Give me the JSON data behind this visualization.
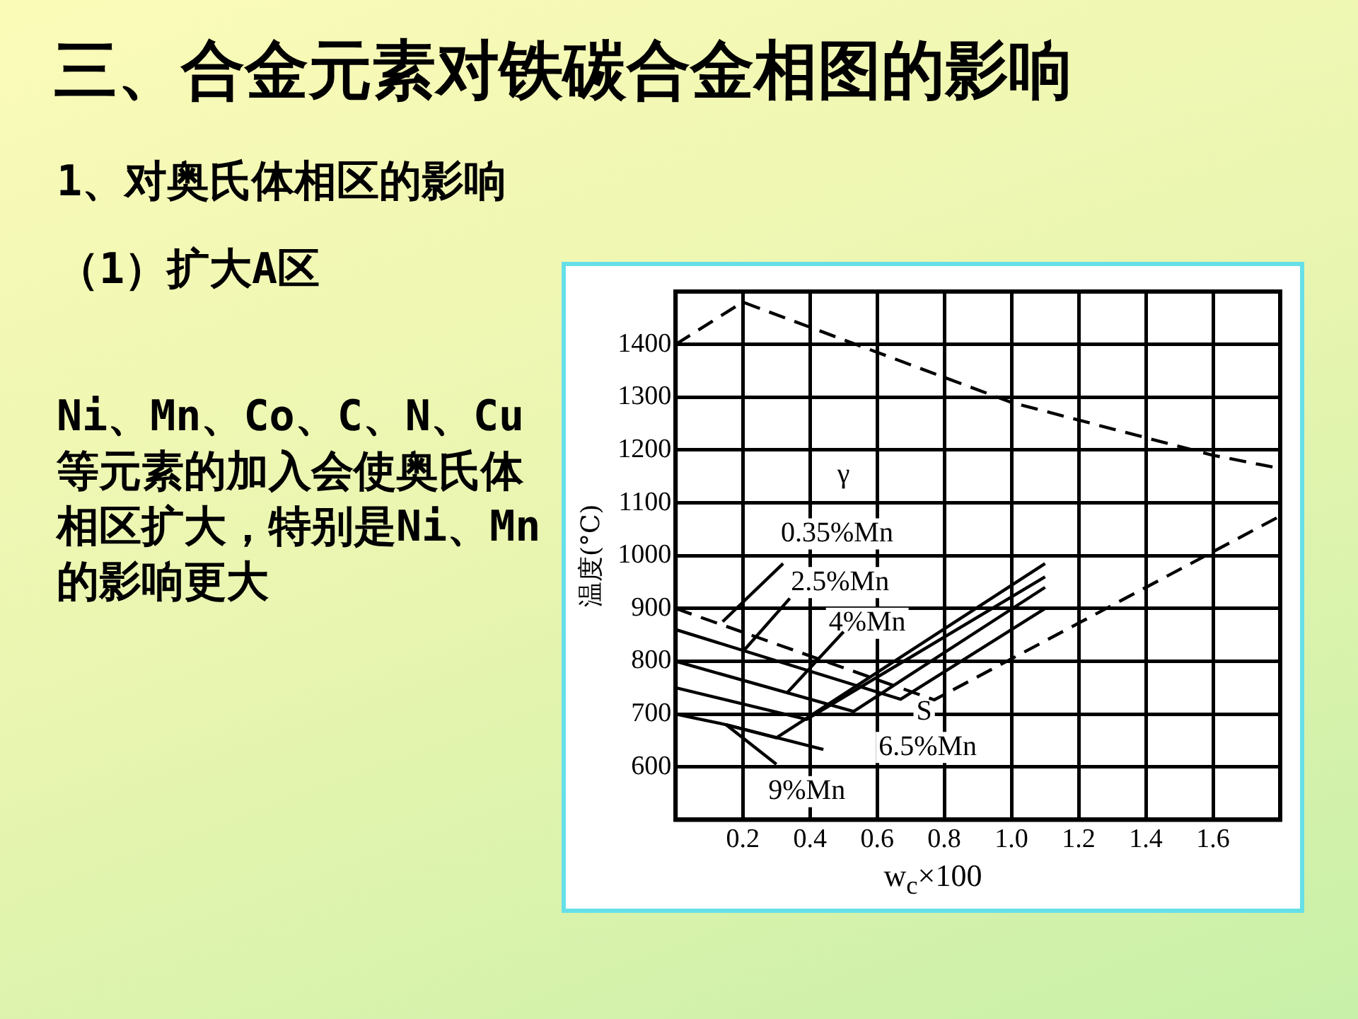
{
  "chart_data": {
    "type": "line",
    "title": "三、合金元素对铁碳合金相图的影响",
    "subtitle": "1、对奥氏体相区的影响",
    "xlabel": "w$_{c}$×100",
    "ylabel": "温度(°C)",
    "xlim": [
      0,
      1.8
    ],
    "ylim": [
      500,
      1500
    ],
    "xticks": [
      0.2,
      0.4,
      0.6,
      0.8,
      {
        "value": 1,
        "label": "1.0"
      },
      1.2,
      1.4,
      1.6
    ],
    "yticks": [
      600,
      700,
      800,
      900,
      1000,
      1100,
      1200,
      1300,
      1400
    ],
    "grid": true,
    "legend": false,
    "marker": "none",
    "series": [
      {
        "color": "#000000",
        "line_style": "dashed",
        "x": [
          0,
          0.2,
          1.0,
          1.6,
          1.8
        ],
        "values": [
          1400,
          1480,
          1290,
          1190,
          1165
        ]
      },
      {
        "color": "#000000",
        "line_style": "dashed",
        "x": [
          0,
          0.77,
          1.8
        ],
        "values": [
          900,
          727,
          1075
        ]
      },
      {
        "color": "#000000",
        "line_style": "solid",
        "x": [
          0,
          0.67,
          1.1
        ],
        "values": [
          860,
          728,
          900
        ]
      },
      {
        "color": "#000000",
        "line_style": "solid",
        "x": [
          0,
          0.53,
          1.1
        ],
        "values": [
          800,
          705,
          940
        ]
      },
      {
        "color": "#000000",
        "line_style": "solid",
        "x": [
          0,
          0.39,
          1.1
        ],
        "values": [
          750,
          690,
          960
        ]
      },
      {
        "color": "#000000",
        "line_style": "solid",
        "x": [
          0,
          0.15,
          0.3,
          1.1
        ],
        "values": [
          700,
          680,
          655,
          985
        ]
      },
      {
        "color": "#000000",
        "line_style": "solid",
        "x": [
          0.15,
          0.3
        ],
        "values": [
          680,
          605
        ]
      },
      {
        "color": "#000000",
        "line_style": "solid",
        "x": [
          0.15,
          0.44
        ],
        "values": [
          680,
          633
        ]
      },
      {
        "color": "#000000",
        "line_style": "solid",
        "x": [
          0.14,
          0.32
        ],
        "values": [
          875,
          985
        ]
      },
      {
        "color": "#000000",
        "line_style": "solid",
        "x": [
          0.2,
          0.34
        ],
        "values": [
          818,
          919
        ]
      },
      {
        "color": "#000000",
        "line_style": "solid",
        "x": [
          0.33,
          0.5
        ],
        "values": [
          739,
          856
        ]
      }
    ],
    "annotations": [
      "（1）扩大A区",
      "Ni、Mn、Co、C、N、Cu等元素的加入会使奥氏体相区扩大，特别是Ni、Mn的影响更大",
      {
        "text": "γ",
        "x": 0.5,
        "y": 1152
      },
      "0.35%Mn",
      "2.5%Mn",
      "4%Mn",
      {
        "text": "S",
        "x": 0.74,
        "y": 703
      },
      "6.5%Mn",
      "9%Mn"
    ]
  }
}
